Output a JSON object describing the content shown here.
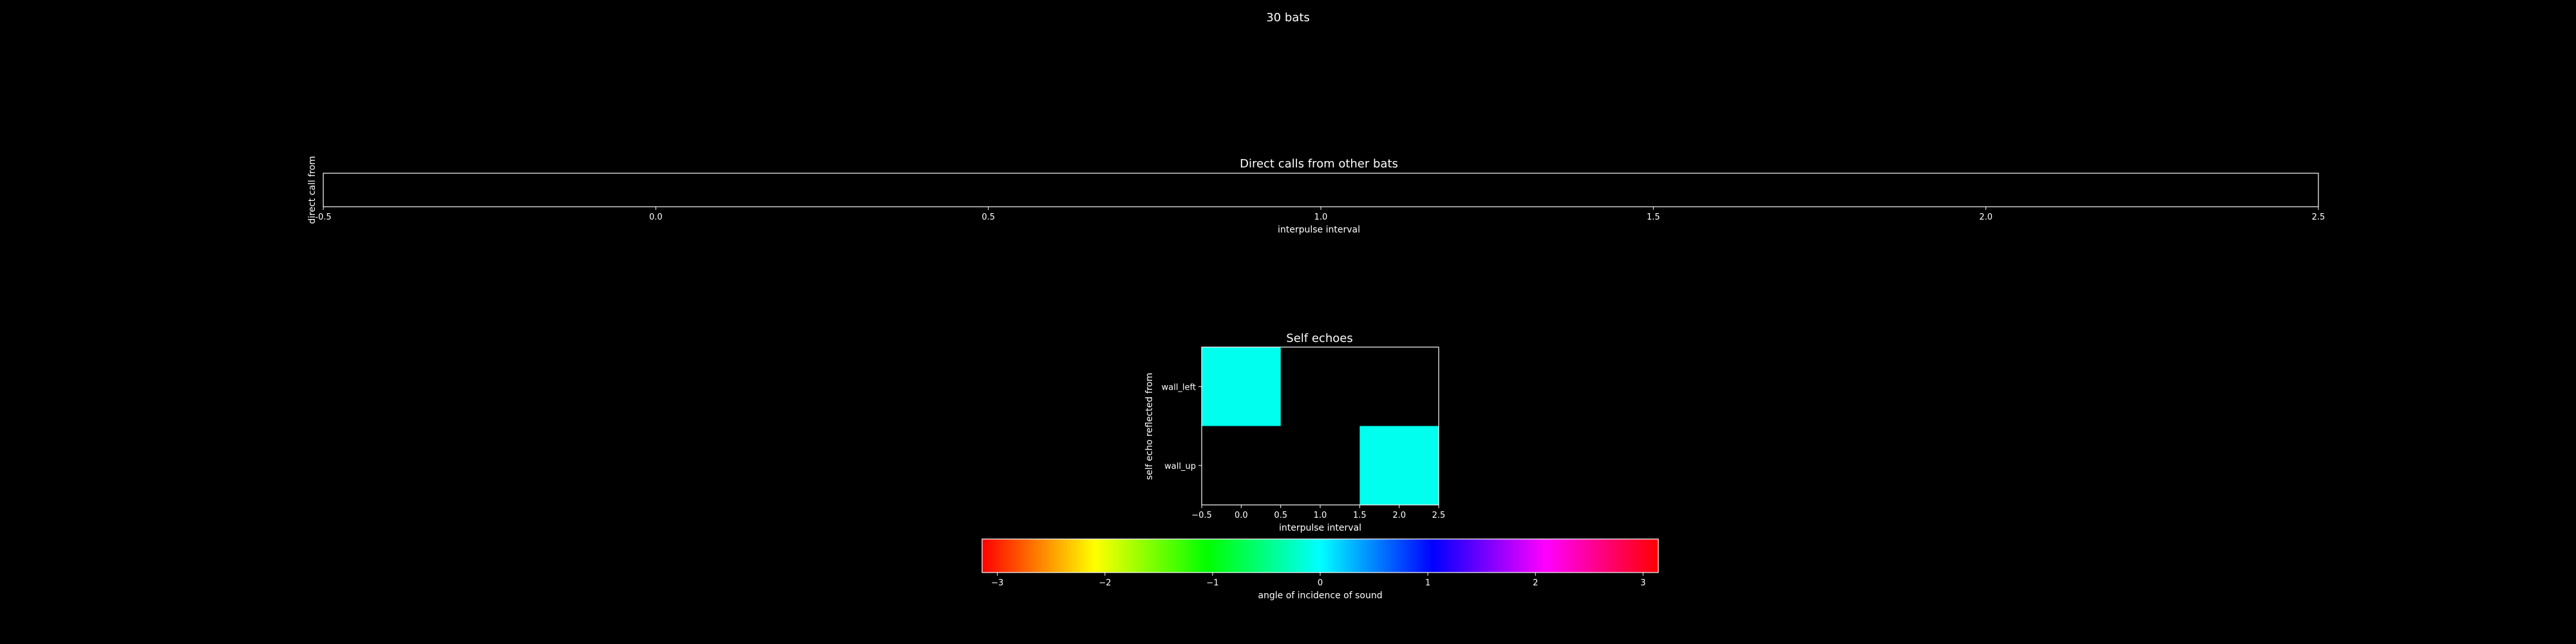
{
  "figure": {
    "title": "30 bats",
    "background": "#000000",
    "foreground": "#ffffff"
  },
  "chart_data": [
    {
      "type": "heatmap",
      "title": "Direct calls from other bats",
      "xlabel": "interpulse interval",
      "ylabel": "direct call from",
      "xlim": [
        -0.5,
        2.5
      ],
      "x_ticks": [
        -0.5,
        0.0,
        0.5,
        1.0,
        1.5,
        2.0,
        2.5
      ],
      "x_tick_labels": [
        "-0.5",
        "0.0",
        "0.5",
        "1.0",
        "1.5",
        "2.0",
        "2.5"
      ],
      "rows": [],
      "cells": []
    },
    {
      "type": "heatmap",
      "title": "Self echoes",
      "xlabel": "interpulse interval",
      "ylabel": "self echo reflected from",
      "xlim": [
        -0.5,
        2.5
      ],
      "x_ticks": [
        -0.5,
        0.0,
        0.5,
        1.0,
        1.5,
        2.0,
        2.5
      ],
      "x_tick_labels": [
        "−0.5",
        "0.0",
        "0.5",
        "1.0",
        "1.5",
        "2.0",
        "2.5"
      ],
      "rows": [
        "wall_left",
        "wall_up"
      ],
      "cells": [
        {
          "row": "wall_left",
          "x": 0,
          "angle": 0.5
        },
        {
          "row": "wall_up",
          "x": 2,
          "angle": 0.5
        }
      ],
      "cell_color": "#00ffee"
    },
    {
      "type": "colorbar",
      "label": "angle of incidence of sound",
      "range": [
        -3.1416,
        3.1416
      ],
      "ticks": [
        -3,
        -2,
        -1,
        0,
        1,
        2,
        3
      ],
      "tick_labels": [
        "−3",
        "−2",
        "−1",
        "0",
        "1",
        "2",
        "3"
      ],
      "colormap": "hsv",
      "colormap_stops": [
        "#ff0000",
        "#ffff00",
        "#00ff00",
        "#00ffff",
        "#0000ff",
        "#ff00ff",
        "#ff0000"
      ]
    }
  ]
}
